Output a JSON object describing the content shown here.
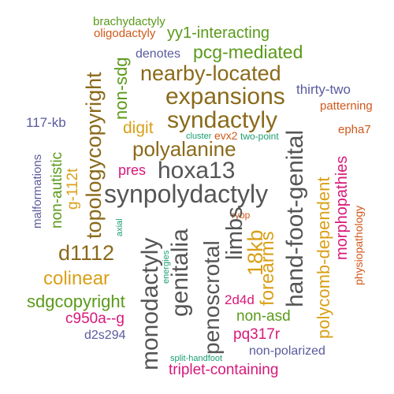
{
  "palette": {
    "olive": "#8a6a1a",
    "gold": "#d9a018",
    "gray": "#555555",
    "green": "#5a9a1a",
    "purple": "#5a5a9e",
    "magenta": "#d8187a",
    "orange": "#d0581a",
    "teal": "#1a9e6e"
  },
  "words": {
    "w01": "brachydactyly",
    "w02": "oligodactyly",
    "w03": "yy1-interacting",
    "w04": "denotes",
    "w05": "pcg-mediated",
    "w06": "nearby-located",
    "w07": "expansions",
    "w08": "syndactyly",
    "w09": "thirty-two",
    "w10": "patterning",
    "w11": "117-kb",
    "w12": "digit",
    "w13": "cluster",
    "w14": "evx2",
    "w15": "two-point",
    "w16": "epha7",
    "w17": "polyalanine",
    "w18": "pres",
    "w19": "hoxa13",
    "w20": "synpolydactyly",
    "w21": "rybp",
    "w22": "d1112",
    "w23": "colinear",
    "w24": "sdgcopyright",
    "w25": "2d4d",
    "w26": "c950a--g",
    "w27": "non-asd",
    "w28": "pq317r",
    "w29": "d2s294",
    "w30": "non-polarized",
    "w31": "split-handfoot",
    "w32": "triplet-containing",
    "w33": "topologycopyright",
    "w34": "non-sdg",
    "w35": "malformations",
    "w36": "non-autistic",
    "w37": "g-112t",
    "w38": "axial",
    "w39": "monodactyly",
    "w40": "energies",
    "w41": "genitalia",
    "w42": "penoscrotal",
    "w43": "limbs",
    "w44": "18kb",
    "w45": "forearms",
    "w46": "hand-foot-genital",
    "w47": "polycomb-dependent",
    "w48": "morphopathies",
    "w49": "physiopathology"
  }
}
